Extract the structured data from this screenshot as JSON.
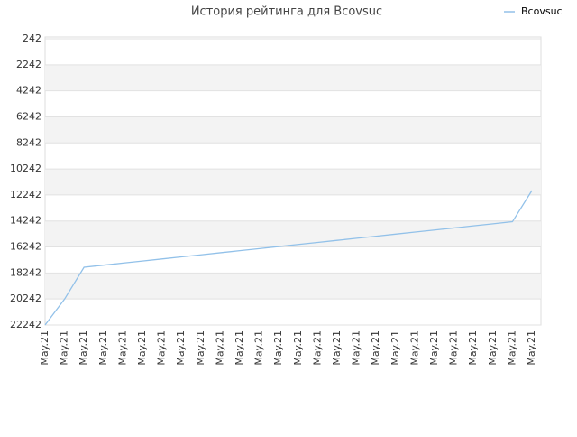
{
  "chart_data": {
    "type": "line",
    "title": "История рейтинга для Bcovsuc",
    "categories": [
      "May.21",
      "May.21",
      "May.21",
      "May.21",
      "May.21",
      "May.21",
      "May.21",
      "May.21",
      "May.21",
      "May.21",
      "May.21",
      "May.21",
      "May.21",
      "May.21",
      "May.21",
      "May.21",
      "May.21",
      "May.21",
      "May.21",
      "May.21",
      "May.21",
      "May.21",
      "May.21",
      "May.21",
      "May.21",
      "May.21"
    ],
    "series": [
      {
        "name": "Bcovsuc",
        "color": "#92c1e9",
        "values": [
          22242,
          20250,
          17800,
          17641,
          17482,
          17323,
          17164,
          17005,
          16845,
          16686,
          16527,
          16368,
          16209,
          16050,
          15891,
          15732,
          15573,
          15414,
          15255,
          15095,
          14936,
          14777,
          14618,
          14459,
          14300,
          11900
        ]
      }
    ],
    "ylim": [
      242,
      22242
    ],
    "y_reversed": true,
    "yticks": [
      242,
      2242,
      4242,
      6242,
      8242,
      10242,
      12242,
      14242,
      16242,
      18242,
      20242,
      22242
    ],
    "grid": true,
    "legend": "top-right"
  }
}
